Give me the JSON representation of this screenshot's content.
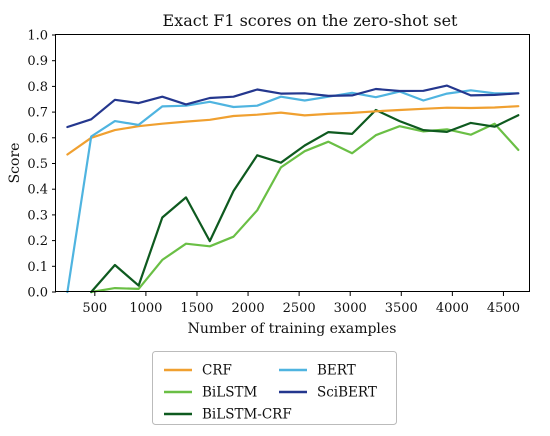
{
  "chart_data": {
    "type": "line",
    "title": "Exact F1 scores on the zero-shot set",
    "xlabel": "Number of training examples",
    "ylabel": "Score",
    "xlim": [
      120,
      4760
    ],
    "ylim": [
      0,
      1.0
    ],
    "xticks": [
      500,
      1000,
      1500,
      2000,
      2500,
      3000,
      3500,
      4000,
      4500
    ],
    "yticks": [
      0.0,
      0.1,
      0.2,
      0.3,
      0.4,
      0.5,
      0.6,
      0.7,
      0.8,
      0.9,
      1.0
    ],
    "ytick_labels": [
      "0.0",
      "0.1",
      "0.2",
      "0.3",
      "0.4",
      "0.5",
      "0.6",
      "0.7",
      "0.8",
      "0.9",
      "1.0"
    ],
    "grid": false,
    "legend_position": "bottom-center",
    "x": [
      232,
      465,
      697,
      929,
      1161,
      1393,
      1626,
      1858,
      2090,
      2322,
      2555,
      2787,
      3019,
      3251,
      3484,
      3716,
      3948,
      4180,
      4413,
      4645
    ],
    "series": [
      {
        "name": "CRF",
        "color": "#f0a030",
        "values": [
          0.535,
          0.6,
          0.63,
          0.645,
          0.655,
          0.663,
          0.67,
          0.685,
          0.69,
          0.698,
          0.687,
          0.693,
          0.697,
          0.703,
          0.708,
          0.713,
          0.717,
          0.716,
          0.718,
          0.723
        ]
      },
      {
        "name": "BiLSTM",
        "color": "#6abf45",
        "values": [
          null,
          0.0,
          0.015,
          0.012,
          0.125,
          0.188,
          0.178,
          0.215,
          0.318,
          0.485,
          0.548,
          0.585,
          0.54,
          0.61,
          0.645,
          0.625,
          0.633,
          0.612,
          0.655,
          0.553
        ]
      },
      {
        "name": "BiLSTM-CRF",
        "color": "#0e5a1f",
        "values": [
          null,
          0.0,
          0.105,
          0.025,
          0.29,
          0.368,
          0.198,
          0.393,
          0.532,
          0.503,
          0.57,
          0.622,
          0.615,
          0.708,
          0.665,
          0.63,
          0.623,
          0.658,
          0.643,
          0.688
        ]
      },
      {
        "name": "BERT",
        "color": "#4fb4e0",
        "values": [
          0.0,
          0.605,
          0.665,
          0.65,
          0.722,
          0.725,
          0.74,
          0.72,
          0.725,
          0.76,
          0.745,
          0.76,
          0.775,
          0.758,
          0.78,
          0.745,
          0.772,
          0.785,
          0.773,
          0.773
        ]
      },
      {
        "name": "SciBERT",
        "color": "#24378e",
        "values": [
          0.642,
          0.672,
          0.748,
          0.735,
          0.76,
          0.73,
          0.755,
          0.76,
          0.788,
          0.772,
          0.773,
          0.763,
          0.765,
          0.79,
          0.782,
          0.783,
          0.803,
          0.765,
          0.767,
          0.773
        ]
      }
    ],
    "legend_layout": [
      [
        "CRF",
        "BERT"
      ],
      [
        "BiLSTM",
        "SciBERT"
      ],
      [
        "BiLSTM-CRF"
      ]
    ]
  }
}
